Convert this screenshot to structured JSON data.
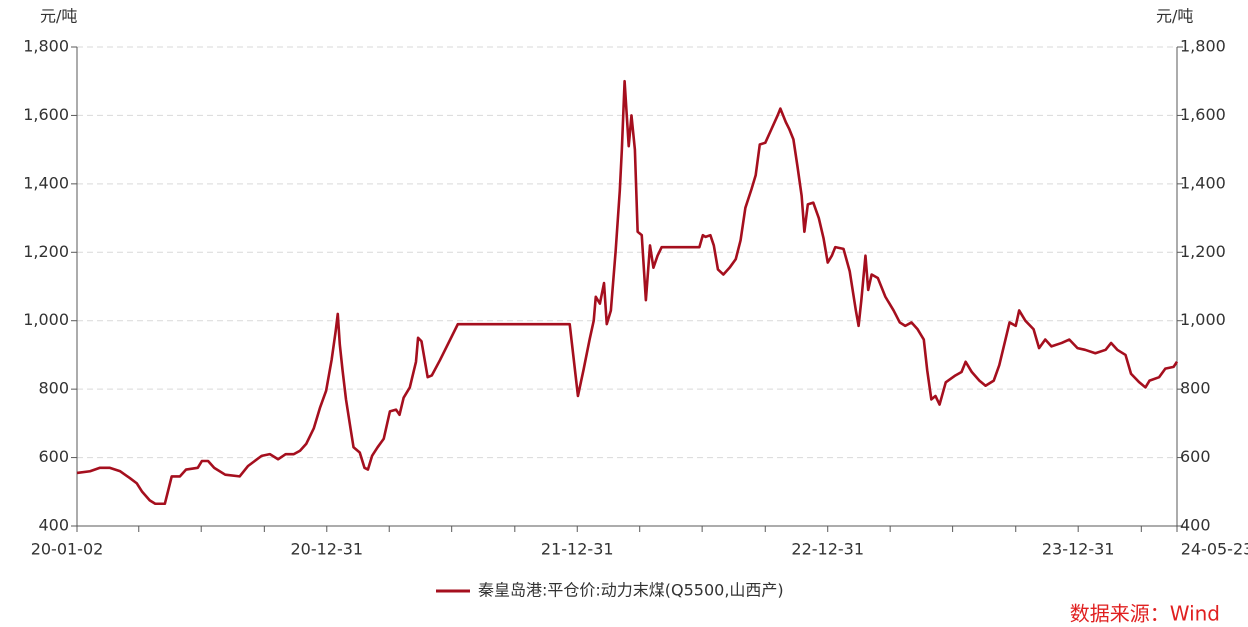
{
  "chart_data": {
    "type": "line",
    "y_unit": "元/吨",
    "y2_unit": "元/吨",
    "x": [
      "20-01-02",
      "20-01-21",
      "20-02-04",
      "20-02-19",
      "20-03-05",
      "20-03-19",
      "20-03-29",
      "20-04-06",
      "20-04-17",
      "20-04-25",
      "20-05-09",
      "20-05-19",
      "20-05-31",
      "20-06-09",
      "20-06-26",
      "20-07-02",
      "20-07-11",
      "20-07-20",
      "20-08-05",
      "20-08-26",
      "20-09-07",
      "20-09-17",
      "20-09-27",
      "20-10-09",
      "20-10-21",
      "20-11-01",
      "20-11-13",
      "20-11-22",
      "20-12-01",
      "20-12-12",
      "20-12-21",
      "20-12-30",
      "21-01-07",
      "21-01-13",
      "21-01-16",
      "21-01-19",
      "21-01-23",
      "21-01-28",
      "21-02-04",
      "21-02-08",
      "21-02-17",
      "21-02-24",
      "21-03-01",
      "21-03-07",
      "21-03-15",
      "21-03-24",
      "21-04-02",
      "21-04-11",
      "21-04-16",
      "21-04-22",
      "21-05-01",
      "21-05-10",
      "21-05-13",
      "21-05-18",
      "21-05-27",
      "21-06-02",
      "21-06-14",
      "21-07-10",
      "21-12-20",
      "21-12-26",
      "22-01-01",
      "22-01-09",
      "22-01-18",
      "22-01-24",
      "22-01-27",
      "22-02-02",
      "22-02-08",
      "22-02-12",
      "22-02-18",
      "22-02-25",
      "22-03-03",
      "22-03-06",
      "22-03-10",
      "22-03-16",
      "22-03-20",
      "22-03-25",
      "22-03-29",
      "22-04-04",
      "22-04-10",
      "22-04-16",
      "22-04-21",
      "22-04-27",
      "22-05-03",
      "22-06-27",
      "22-07-02",
      "22-07-06",
      "22-07-13",
      "22-07-18",
      "22-07-24",
      "22-08-01",
      "22-08-10",
      "22-08-19",
      "22-08-26",
      "22-09-02",
      "22-09-11",
      "22-09-17",
      "22-09-23",
      "22-10-01",
      "22-10-10",
      "22-10-19",
      "22-10-23",
      "22-10-31",
      "22-11-05",
      "22-11-11",
      "22-11-17",
      "22-11-23",
      "22-11-27",
      "22-12-02",
      "22-12-10",
      "22-12-18",
      "22-12-25",
      "22-12-31",
      "23-01-06",
      "23-01-11",
      "23-01-23",
      "23-02-01",
      "23-02-10",
      "23-02-14",
      "23-02-18",
      "23-02-24",
      "23-02-28",
      "23-03-05",
      "23-03-14",
      "23-03-25",
      "23-04-06",
      "23-04-15",
      "23-04-23",
      "23-05-02",
      "23-05-11",
      "23-05-20",
      "23-05-25",
      "23-05-31",
      "23-06-06",
      "23-06-12",
      "23-06-21",
      "23-07-05",
      "23-07-14",
      "23-07-20",
      "23-07-29",
      "23-08-09",
      "23-08-18",
      "23-08-30",
      "23-09-07",
      "23-09-16",
      "23-09-22",
      "23-10-01",
      "23-10-06",
      "23-10-15",
      "23-10-27",
      "23-11-04",
      "23-11-13",
      "23-11-22",
      "23-12-07",
      "23-12-18",
      "23-12-30",
      "24-01-10",
      "24-01-25",
      "24-02-09",
      "24-02-17",
      "24-02-26",
      "24-03-09",
      "24-03-17",
      "24-03-29",
      "24-04-07",
      "24-04-13",
      "24-04-27",
      "24-05-06",
      "24-05-18",
      "24-05-23"
    ],
    "series": [
      {
        "name": "秦皇岛港:平仓价:动力末煤(Q5500,山西产)",
        "color": "#a50f1e",
        "values": [
          555,
          560,
          570,
          570,
          560,
          540,
          525,
          500,
          475,
          465,
          465,
          545,
          545,
          565,
          570,
          590,
          590,
          570,
          550,
          545,
          575,
          590,
          605,
          610,
          595,
          610,
          610,
          620,
          640,
          685,
          745,
          795,
          885,
          970,
          1020,
          930,
          855,
          770,
          680,
          630,
          615,
          570,
          565,
          605,
          630,
          655,
          735,
          740,
          725,
          775,
          805,
          880,
          950,
          940,
          835,
          840,
          885,
          990,
          990,
          885,
          780,
          855,
          945,
          1000,
          1070,
          1050,
          1110,
          990,
          1030,
          1205,
          1380,
          1500,
          1700,
          1510,
          1600,
          1500,
          1260,
          1250,
          1060,
          1220,
          1155,
          1190,
          1215,
          1215,
          1250,
          1245,
          1250,
          1220,
          1150,
          1135,
          1155,
          1180,
          1235,
          1330,
          1385,
          1425,
          1515,
          1520,
          1560,
          1600,
          1620,
          1580,
          1560,
          1530,
          1450,
          1365,
          1260,
          1340,
          1345,
          1300,
          1240,
          1170,
          1190,
          1215,
          1210,
          1145,
          1030,
          985,
          1060,
          1190,
          1090,
          1135,
          1125,
          1070,
          1030,
          995,
          985,
          995,
          975,
          945,
          855,
          770,
          780,
          755,
          820,
          840,
          850,
          880,
          850,
          825,
          810,
          825,
          870,
          945,
          995,
          985,
          1030,
          1000,
          975,
          920,
          945,
          925,
          935,
          945,
          920,
          915,
          905,
          915,
          935,
          915,
          900,
          845,
          820,
          805,
          825,
          835,
          860,
          865,
          880
        ]
      }
    ],
    "xticks": [
      "20-01-02",
      {
        "value": "20-04-01",
        "label": null
      },
      {
        "value": "20-07-01",
        "label": null
      },
      {
        "value": "20-10-01",
        "label": null
      },
      "20-12-31",
      {
        "value": "21-04-01",
        "label": null
      },
      {
        "value": "21-07-01",
        "label": null
      },
      {
        "value": "21-10-01",
        "label": null
      },
      "21-12-31",
      {
        "value": "22-04-01",
        "label": null
      },
      {
        "value": "22-07-01",
        "label": null
      },
      {
        "value": "22-10-01",
        "label": null
      },
      "22-12-31",
      {
        "value": "23-04-01",
        "label": null
      },
      {
        "value": "23-07-01",
        "label": null
      },
      {
        "value": "23-10-01",
        "label": null
      },
      "23-12-31",
      {
        "value": "24-04-01",
        "label": null
      },
      "24-05-23"
    ],
    "xlim": [
      "20-01-02",
      "24-05-23"
    ],
    "ylim": [
      400,
      1800
    ],
    "yticks": [
      400,
      600,
      800,
      {
        "value": 1000,
        "label": "1,000"
      },
      {
        "value": 1200,
        "label": "1,200"
      },
      {
        "value": 1400,
        "label": "1,400"
      },
      {
        "value": 1600,
        "label": "1,600"
      },
      {
        "value": 1800,
        "label": "1,800"
      }
    ],
    "y2lim": [
      400,
      1800
    ],
    "y2ticks": [
      400,
      600,
      800,
      {
        "value": 1000,
        "label": "1,000"
      },
      {
        "value": 1200,
        "label": "1,200"
      },
      {
        "value": 1400,
        "label": "1,400"
      },
      {
        "value": 1600,
        "label": "1,600"
      },
      {
        "value": 1800,
        "label": "1,800"
      }
    ],
    "grid": true,
    "legend": "bottom",
    "source": "数据来源：Wind",
    "source_color": "#e02020"
  }
}
